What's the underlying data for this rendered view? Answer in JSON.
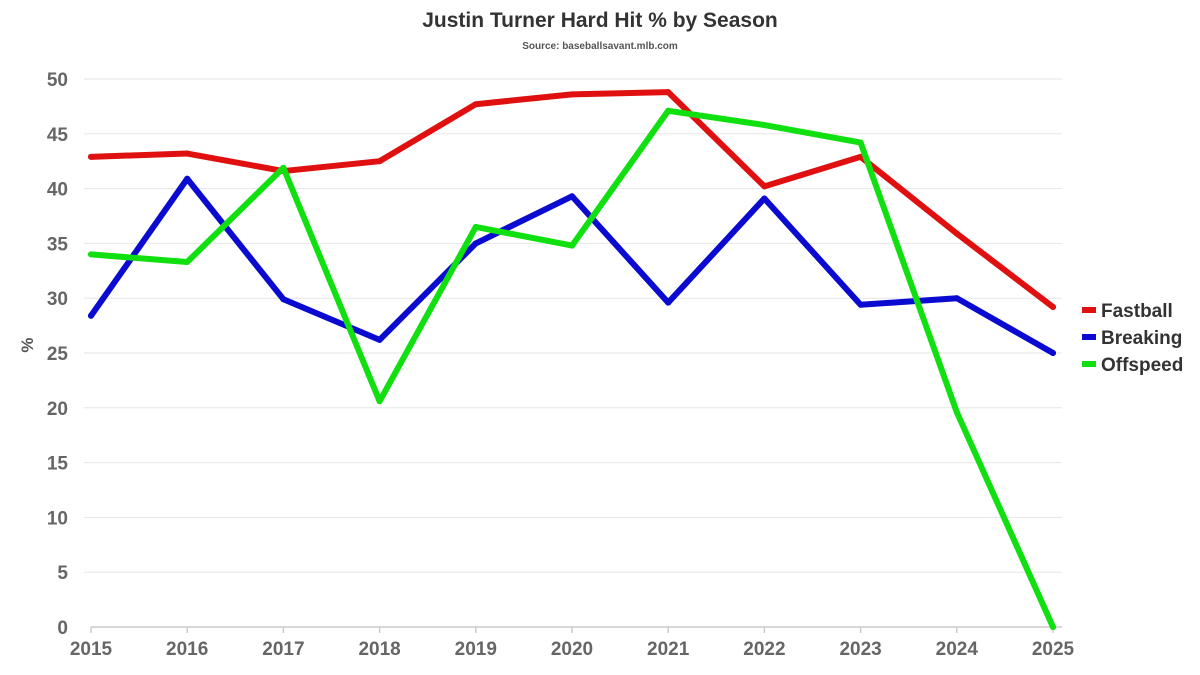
{
  "chart_data": {
    "type": "line",
    "title": "Justin Turner Hard Hit % by Season",
    "subtitle": "Source: baseballsavant.mlb.com",
    "xlabel": "",
    "ylabel": "%",
    "x": [
      "2015",
      "2016",
      "2017",
      "2018",
      "2019",
      "2020",
      "2021",
      "2022",
      "2023",
      "2024",
      "2025"
    ],
    "ylim": [
      0,
      50
    ],
    "yticks": [
      "0",
      "5",
      "10",
      "15",
      "20",
      "25",
      "30",
      "35",
      "40",
      "45",
      "50"
    ],
    "grid": true,
    "legend_position": "right",
    "series": [
      {
        "name": "Fastball",
        "color": "#e01010",
        "values": [
          42.9,
          43.2,
          41.6,
          42.5,
          47.7,
          48.6,
          48.8,
          40.2,
          42.9,
          35.9,
          29.2
        ]
      },
      {
        "name": "Breaking",
        "color": "#0a0ad0",
        "values": [
          28.4,
          40.9,
          29.9,
          26.2,
          35.0,
          39.3,
          29.6,
          39.1,
          29.4,
          30.0,
          25.0
        ]
      },
      {
        "name": "Offspeed",
        "color": "#10e010",
        "values": [
          34.0,
          33.3,
          41.9,
          20.6,
          36.5,
          34.8,
          47.1,
          45.8,
          44.2,
          19.6,
          0.0
        ]
      }
    ]
  }
}
